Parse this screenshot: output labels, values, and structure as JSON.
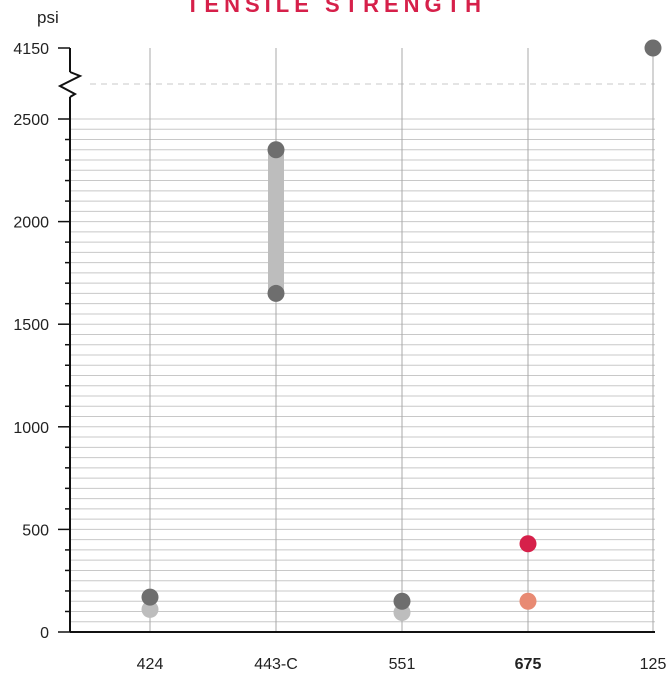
{
  "colors": {
    "title": "#d6204a",
    "accent_high": "#d6204a",
    "accent_low": "#e88a73",
    "dot_high": "#6e6e6e",
    "dot_low": "#bdbdbd",
    "bar": "#bdbdbd",
    "grid": "#c8c8c8",
    "vline": "#a8a8a8",
    "axis": "#111111"
  },
  "chart_data": {
    "type": "range",
    "title": "TENSILE STRENGTH",
    "ylabel": "psi",
    "ylim": [
      0,
      2800
    ],
    "y_axis_break": true,
    "y_ticks": [
      0,
      500,
      1000,
      1500,
      2000,
      2500
    ],
    "y_break_label": "4150",
    "grid": true,
    "categories": [
      {
        "label": "424",
        "low": 110,
        "high": 170,
        "bold": false,
        "highlight": false,
        "bar": false
      },
      {
        "label": "443-C",
        "low": 1650,
        "high": 2350,
        "bold": false,
        "highlight": false,
        "bar": true
      },
      {
        "label": "551",
        "low": 95,
        "high": 150,
        "bold": false,
        "highlight": false,
        "bar": false
      },
      {
        "label": "675",
        "low": 150,
        "high": 430,
        "bold": true,
        "highlight": true,
        "bar": true
      },
      {
        "label": "125",
        "low": null,
        "high": 4150,
        "bold": false,
        "highlight": false,
        "bar": false
      }
    ]
  }
}
